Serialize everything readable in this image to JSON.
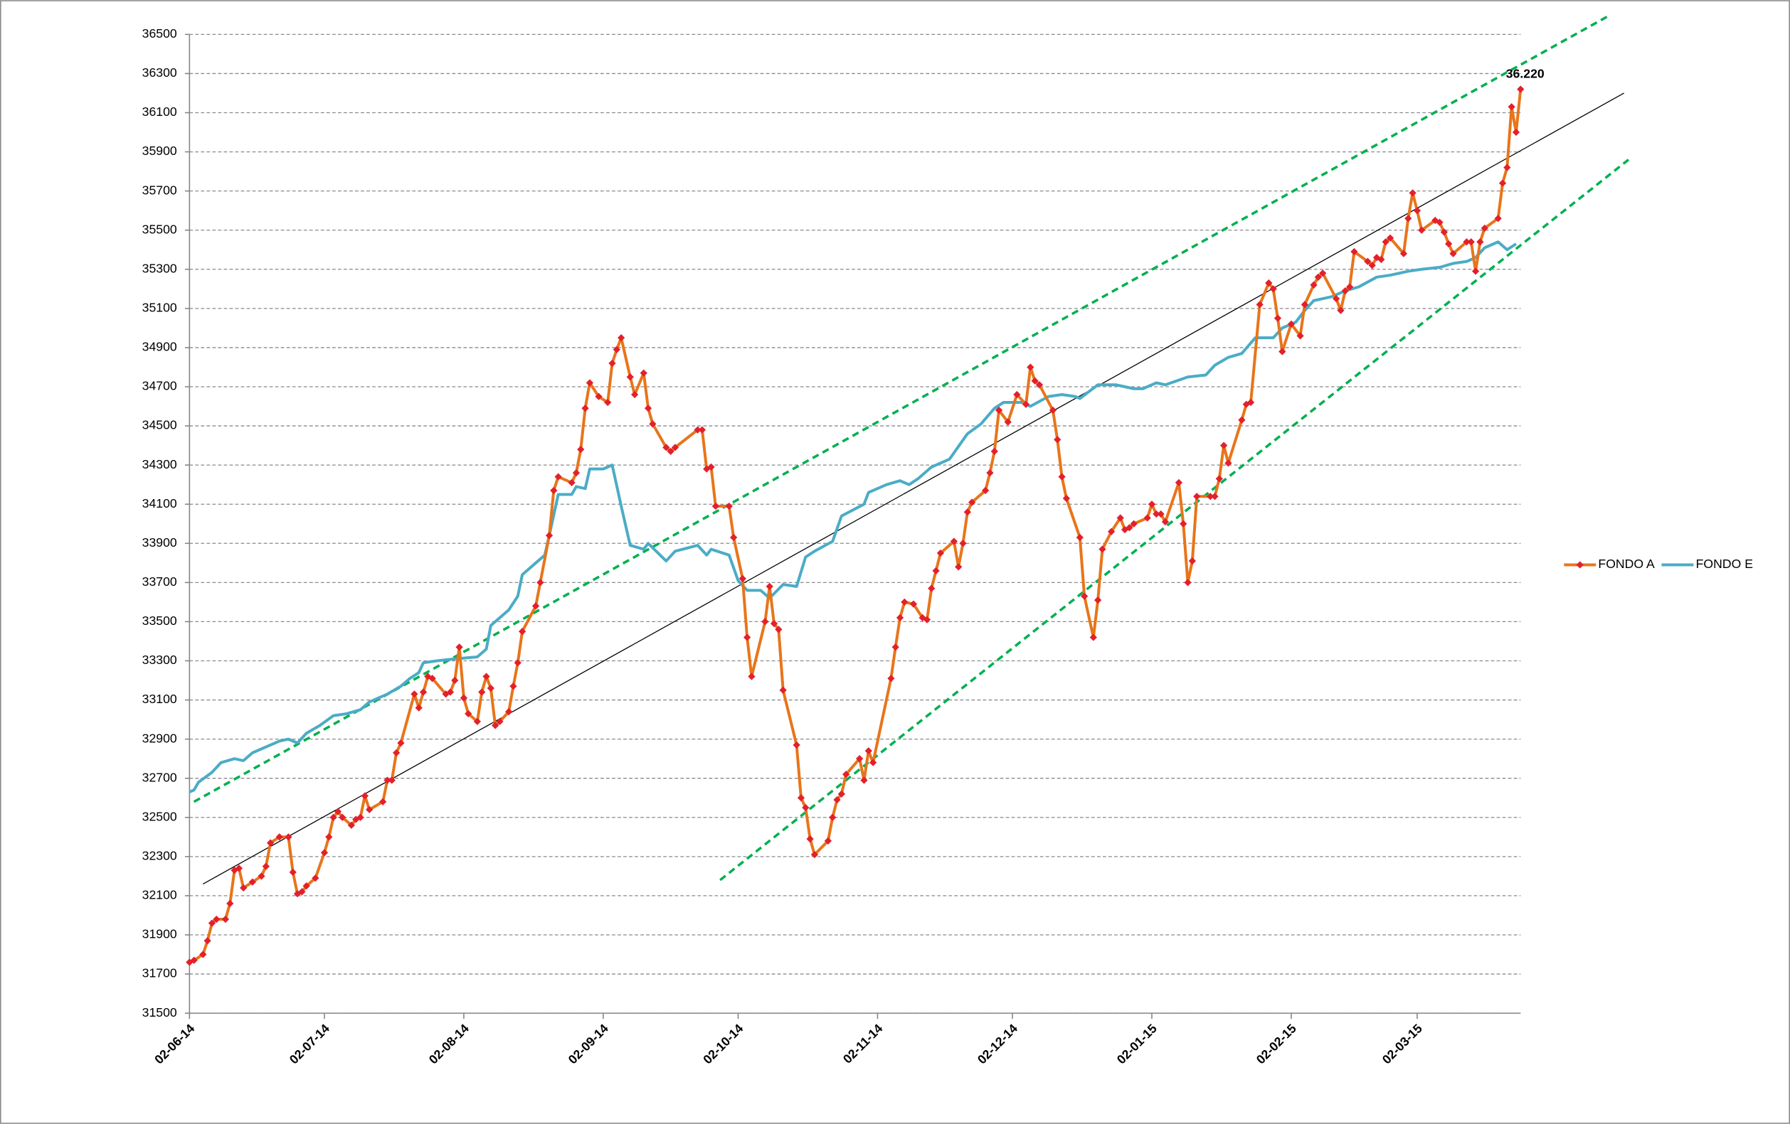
{
  "chart_data": {
    "type": "line",
    "xlim": [
      "2014-06-02",
      "2015-03-25"
    ],
    "xticks": [
      {
        "value": "2014-06-02",
        "label": "02-06-14"
      },
      {
        "value": "2014-07-02",
        "label": "02-07-14"
      },
      {
        "value": "2014-08-02",
        "label": "02-08-14"
      },
      {
        "value": "2014-09-02",
        "label": "02-09-14"
      },
      {
        "value": "2014-10-02",
        "label": "02-10-14"
      },
      {
        "value": "2014-11-02",
        "label": "02-11-14"
      },
      {
        "value": "2014-12-02",
        "label": "02-12-14"
      },
      {
        "value": "2015-01-02",
        "label": "02-01-15"
      },
      {
        "value": "2015-02-02",
        "label": "02-02-15"
      },
      {
        "value": "2015-03-02",
        "label": "02-03-15"
      }
    ],
    "ylim": [
      31500,
      36500
    ],
    "yticks": [
      31500,
      31700,
      31900,
      32100,
      32300,
      32500,
      32700,
      32900,
      33100,
      33300,
      33500,
      33700,
      33900,
      34100,
      34300,
      34500,
      34700,
      34900,
      35100,
      35300,
      35500,
      35700,
      35900,
      36100,
      36300,
      36500
    ],
    "grid": true,
    "legend": "right",
    "series": [
      {
        "name": "FONDO A",
        "color": "#e8751a",
        "marker": "diamond",
        "marker_color": "#e3202b",
        "x": [
          "2014-06-02",
          "2014-06-03",
          "2014-06-05",
          "2014-06-06",
          "2014-06-07",
          "2014-06-08",
          "2014-06-10",
          "2014-06-11",
          "2014-06-12",
          "2014-06-13",
          "2014-06-14",
          "2014-06-16",
          "2014-06-18",
          "2014-06-19",
          "2014-06-20",
          "2014-06-22",
          "2014-06-24",
          "2014-06-25",
          "2014-06-26",
          "2014-06-27",
          "2014-06-28",
          "2014-06-30",
          "2014-07-02",
          "2014-07-03",
          "2014-07-04",
          "2014-07-05",
          "2014-07-06",
          "2014-07-08",
          "2014-07-09",
          "2014-07-10",
          "2014-07-11",
          "2014-07-12",
          "2014-07-15",
          "2014-07-16",
          "2014-07-17",
          "2014-07-18",
          "2014-07-19",
          "2014-07-22",
          "2014-07-23",
          "2014-07-24",
          "2014-07-25",
          "2014-07-26",
          "2014-07-29",
          "2014-07-30",
          "2014-07-31",
          "2014-08-01",
          "2014-08-02",
          "2014-08-03",
          "2014-08-05",
          "2014-08-06",
          "2014-08-07",
          "2014-08-08",
          "2014-08-09",
          "2014-08-10",
          "2014-08-12",
          "2014-08-13",
          "2014-08-14",
          "2014-08-15",
          "2014-08-18",
          "2014-08-19",
          "2014-08-21",
          "2014-08-22",
          "2014-08-23",
          "2014-08-26",
          "2014-08-27",
          "2014-08-28",
          "2014-08-29",
          "2014-08-30",
          "2014-09-01",
          "2014-09-03",
          "2014-09-04",
          "2014-09-05",
          "2014-09-06",
          "2014-09-08",
          "2014-09-09",
          "2014-09-11",
          "2014-09-12",
          "2014-09-13",
          "2014-09-16",
          "2014-09-17",
          "2014-09-18",
          "2014-09-23",
          "2014-09-24",
          "2014-09-25",
          "2014-09-26",
          "2014-09-27",
          "2014-09-30",
          "2014-10-01",
          "2014-10-03",
          "2014-10-04",
          "2014-10-05",
          "2014-10-08",
          "2014-10-09",
          "2014-10-10",
          "2014-10-11",
          "2014-10-12",
          "2014-10-15",
          "2014-10-16",
          "2014-10-17",
          "2014-10-18",
          "2014-10-19",
          "2014-10-22",
          "2014-10-23",
          "2014-10-24",
          "2014-10-25",
          "2014-10-26",
          "2014-10-29",
          "2014-10-30",
          "2014-10-31",
          "2014-11-01",
          "2014-11-05",
          "2014-11-06",
          "2014-11-07",
          "2014-11-08",
          "2014-11-10",
          "2014-11-12",
          "2014-11-13",
          "2014-11-14",
          "2014-11-15",
          "2014-11-16",
          "2014-11-19",
          "2014-11-20",
          "2014-11-21",
          "2014-11-22",
          "2014-11-23",
          "2014-11-26",
          "2014-11-27",
          "2014-11-28",
          "2014-11-29",
          "2014-12-01",
          "2014-12-03",
          "2014-12-05",
          "2014-12-06",
          "2014-12-07",
          "2014-12-08",
          "2014-12-11",
          "2014-12-12",
          "2014-12-13",
          "2014-12-14",
          "2014-12-17",
          "2014-12-18",
          "2014-12-20",
          "2014-12-21",
          "2014-12-22",
          "2014-12-24",
          "2014-12-26",
          "2014-12-27",
          "2014-12-28",
          "2014-12-29",
          "2015-01-01",
          "2015-01-02",
          "2015-01-03",
          "2015-01-04",
          "2015-01-05",
          "2015-01-08",
          "2015-01-09",
          "2015-01-10",
          "2015-01-11",
          "2015-01-12",
          "2015-01-15",
          "2015-01-16",
          "2015-01-17",
          "2015-01-18",
          "2015-01-19",
          "2015-01-22",
          "2015-01-23",
          "2015-01-24",
          "2015-01-26",
          "2015-01-28",
          "2015-01-29",
          "2015-01-30",
          "2015-01-31",
          "2015-02-02",
          "2015-02-04",
          "2015-02-05",
          "2015-02-07",
          "2015-02-08",
          "2015-02-09",
          "2015-02-12",
          "2015-02-13",
          "2015-02-14",
          "2015-02-15",
          "2015-02-16",
          "2015-02-19",
          "2015-02-20",
          "2015-02-21",
          "2015-02-22",
          "2015-02-23",
          "2015-02-24",
          "2015-02-27",
          "2015-02-28",
          "2015-03-01",
          "2015-03-02",
          "2015-03-03",
          "2015-03-06",
          "2015-03-07",
          "2015-03-08",
          "2015-03-09",
          "2015-03-10",
          "2015-03-13",
          "2015-03-14",
          "2015-03-15",
          "2015-03-16",
          "2015-03-17",
          "2015-03-20",
          "2015-03-21",
          "2015-03-22",
          "2015-03-23",
          "2015-03-24",
          "2015-03-25"
        ],
        "values": [
          31760,
          31770,
          31800,
          31870,
          31960,
          31980,
          31980,
          32060,
          32230,
          32240,
          32140,
          32170,
          32200,
          32250,
          32370,
          32400,
          32400,
          32220,
          32110,
          32120,
          32150,
          32190,
          32320,
          32400,
          32500,
          32530,
          32500,
          32460,
          32490,
          32500,
          32610,
          32540,
          32580,
          32690,
          32690,
          32830,
          32880,
          33130,
          33060,
          33140,
          33220,
          33210,
          33130,
          33140,
          33200,
          33370,
          33110,
          33030,
          32990,
          33140,
          33220,
          33160,
          32970,
          32990,
          33040,
          33170,
          33290,
          33450,
          33580,
          33700,
          33940,
          34170,
          34240,
          34210,
          34260,
          34380,
          34590,
          34720,
          34650,
          34620,
          34820,
          34890,
          34950,
          34750,
          34660,
          34770,
          34590,
          34510,
          34390,
          34370,
          34390,
          34480,
          34480,
          34280,
          34290,
          34090,
          34090,
          33930,
          33720,
          33420,
          33220,
          33500,
          33680,
          33490,
          33460,
          33150,
          32870,
          32600,
          32550,
          32390,
          32310,
          32380,
          32500,
          32590,
          32620,
          32720,
          32800,
          32690,
          32840,
          32780,
          33210,
          33370,
          33520,
          33600,
          33590,
          33520,
          33510,
          33670,
          33760,
          33850,
          33910,
          33780,
          33900,
          34060,
          34110,
          34170,
          34260,
          34370,
          34580,
          34520,
          34660,
          34610,
          34800,
          34730,
          34710,
          34580,
          34430,
          34240,
          34130,
          33930,
          33630,
          33420,
          33610,
          33870,
          33960,
          34030,
          33970,
          33980,
          34000,
          34030,
          34100,
          34050,
          34050,
          34010,
          34210,
          34000,
          33700,
          33810,
          34140,
          34140,
          34140,
          34230,
          34400,
          34310,
          34530,
          34610,
          34620,
          35120,
          35230,
          35200,
          35050,
          34880,
          35020,
          34960,
          35120,
          35220,
          35260,
          35280,
          35150,
          35090,
          35190,
          35210,
          35390,
          35340,
          35320,
          35360,
          35350,
          35440,
          35460,
          35380,
          35560,
          35690,
          35600,
          35500,
          35550,
          35540,
          35490,
          35430,
          35380,
          35440,
          35440,
          35290,
          35440,
          35510,
          35560,
          35740,
          35820,
          36130,
          36000,
          36220
        ],
        "value_labels": [
          null,
          null,
          null,
          null,
          null,
          null,
          null,
          null,
          null,
          null,
          null,
          null,
          null,
          null,
          null,
          null,
          null,
          null,
          null,
          null,
          null,
          null,
          null,
          null,
          null,
          null,
          null,
          null,
          null,
          null,
          null,
          null,
          null,
          null,
          null,
          null,
          null,
          null,
          null,
          null,
          null,
          null,
          null,
          null,
          null,
          null,
          null,
          null,
          null,
          null,
          null,
          null,
          null,
          null,
          null,
          null,
          null,
          null,
          null,
          null,
          null,
          null,
          null,
          null,
          null,
          null,
          null,
          null,
          null,
          null,
          null,
          null,
          null,
          null,
          null,
          null,
          null,
          null,
          null,
          null,
          null,
          null,
          null,
          null,
          null,
          null,
          null,
          null,
          null,
          null,
          null,
          null,
          null,
          null,
          null,
          null,
          null,
          null,
          null,
          null,
          null,
          null,
          null,
          null,
          null,
          null,
          null,
          null,
          null,
          null,
          null,
          null,
          null,
          null,
          null,
          null,
          null,
          null,
          null,
          null,
          null,
          null,
          null,
          null,
          null,
          null,
          null,
          null,
          null,
          null,
          null,
          null,
          null,
          null,
          null,
          null,
          null,
          null,
          null,
          null,
          null,
          null,
          null,
          null,
          null,
          null,
          null,
          null,
          null,
          null,
          null,
          null,
          null,
          null,
          null,
          null,
          null,
          null,
          null,
          null,
          null,
          null,
          null,
          null,
          null,
          null,
          null,
          null,
          null,
          null,
          null,
          null,
          null,
          null,
          null,
          null,
          null,
          null,
          null,
          null,
          null,
          null,
          null,
          null,
          null,
          null,
          null,
          null,
          null,
          null,
          null,
          null,
          null,
          null,
          null,
          null,
          null,
          null,
          null,
          null,
          null,
          null,
          null,
          null,
          null,
          null,
          null,
          null,
          null,
          "36.220"
        ]
      },
      {
        "name": "FONDO E",
        "color": "#4bacc6",
        "x": [
          "2014-06-02",
          "2014-06-03",
          "2014-06-04",
          "2014-06-07",
          "2014-06-09",
          "2014-06-12",
          "2014-06-14",
          "2014-06-16",
          "2014-06-19",
          "2014-06-22",
          "2014-06-24",
          "2014-06-26",
          "2014-06-28",
          "2014-07-01",
          "2014-07-04",
          "2014-07-07",
          "2014-07-10",
          "2014-07-12",
          "2014-07-16",
          "2014-07-19",
          "2014-07-21",
          "2014-07-23",
          "2014-07-24",
          "2014-07-27",
          "2014-07-31",
          "2014-08-05",
          "2014-08-07",
          "2014-08-08",
          "2014-08-10",
          "2014-08-12",
          "2014-08-14",
          "2014-08-15",
          "2014-08-18",
          "2014-08-20",
          "2014-08-21",
          "2014-08-23",
          "2014-08-26",
          "2014-08-27",
          "2014-08-29",
          "2014-08-30",
          "2014-09-02",
          "2014-09-04",
          "2014-09-06",
          "2014-09-08",
          "2014-09-11",
          "2014-09-12",
          "2014-09-16",
          "2014-09-18",
          "2014-09-23",
          "2014-09-25",
          "2014-09-26",
          "2014-09-30",
          "2014-10-02",
          "2014-10-04",
          "2014-10-07",
          "2014-10-09",
          "2014-10-12",
          "2014-10-15",
          "2014-10-17",
          "2014-10-19",
          "2014-10-23",
          "2014-10-25",
          "2014-10-30",
          "2014-10-31",
          "2014-11-04",
          "2014-11-07",
          "2014-11-09",
          "2014-11-11",
          "2014-11-14",
          "2014-11-18",
          "2014-11-22",
          "2014-11-25",
          "2014-11-28",
          "2014-11-30",
          "2014-12-04",
          "2014-12-06",
          "2014-12-10",
          "2014-12-13",
          "2014-12-16",
          "2014-12-17",
          "2014-12-21",
          "2014-12-25",
          "2014-12-29",
          "2014-12-31",
          "2015-01-03",
          "2015-01-05",
          "2015-01-10",
          "2015-01-14",
          "2015-01-16",
          "2015-01-19",
          "2015-01-22",
          "2015-01-25",
          "2015-01-29",
          "2015-01-31",
          "2015-02-01",
          "2015-02-03",
          "2015-02-05",
          "2015-02-07",
          "2015-02-11",
          "2015-02-14",
          "2015-02-17",
          "2015-02-21",
          "2015-02-24",
          "2015-02-28",
          "2015-03-03",
          "2015-03-07",
          "2015-03-10",
          "2015-03-13",
          "2015-03-15",
          "2015-03-17",
          "2015-03-20",
          "2015-03-21",
          "2015-03-22",
          "2015-03-24"
        ],
        "values": [
          32630,
          32640,
          32680,
          32730,
          32780,
          32800,
          32790,
          32830,
          32860,
          32890,
          32900,
          32880,
          32930,
          32970,
          33020,
          33030,
          33050,
          33090,
          33130,
          33170,
          33210,
          33240,
          33290,
          33300,
          33310,
          33320,
          33360,
          33480,
          33520,
          33560,
          33630,
          33740,
          33800,
          33840,
          33940,
          34150,
          34150,
          34190,
          34180,
          34280,
          34280,
          34300,
          34090,
          33890,
          33870,
          33900,
          33810,
          33860,
          33890,
          33840,
          33870,
          33840,
          33710,
          33660,
          33660,
          33620,
          33690,
          33680,
          33830,
          33860,
          33910,
          34040,
          34100,
          34160,
          34200,
          34220,
          34200,
          34230,
          34290,
          34330,
          34460,
          34510,
          34590,
          34620,
          34620,
          34600,
          34650,
          34660,
          34650,
          34640,
          34710,
          34710,
          34690,
          34690,
          34720,
          34710,
          34750,
          34760,
          34810,
          34850,
          34870,
          34950,
          34950,
          35000,
          35010,
          35030,
          35090,
          35140,
          35160,
          35190,
          35210,
          35260,
          35270,
          35290,
          35300,
          35310,
          35330,
          35340,
          35360,
          35410,
          35440,
          35420,
          35400,
          35430
        ]
      }
    ],
    "trend_lines": [
      {
        "color": "#000000",
        "dashed": false,
        "x": [
          "2014-06-05",
          "2015-04-17"
        ],
        "values": [
          32160,
          36200
        ]
      },
      {
        "color": "#00b050",
        "dashed": true,
        "x": [
          "2014-06-03",
          "2015-04-14"
        ],
        "values": [
          32580,
          36600
        ]
      },
      {
        "color": "#00b050",
        "dashed": true,
        "x": [
          "2014-09-28",
          "2015-04-18"
        ],
        "values": [
          32180,
          35860
        ]
      }
    ]
  }
}
